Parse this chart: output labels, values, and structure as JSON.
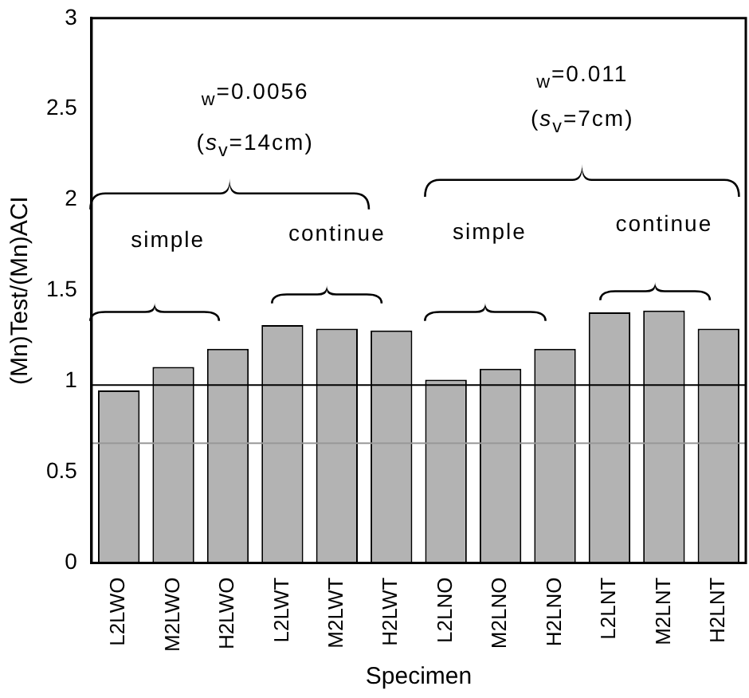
{
  "chart_data": {
    "type": "bar",
    "xlabel": "Specimen",
    "ylabel": "(Mn)Test/(Mn)ACI",
    "categories": [
      "L2LWO",
      "M2LWO",
      "H2LWO",
      "L2LWT",
      "M2LWT",
      "H2LWT",
      "L2LNO",
      "M2LNO",
      "H2LNO",
      "L2LNT",
      "M2LNT",
      "H2LNT"
    ],
    "values": [
      0.95,
      1.08,
      1.18,
      1.31,
      1.29,
      1.28,
      1.01,
      1.07,
      1.18,
      1.38,
      1.39,
      1.29
    ],
    "color": "#b3b3b3",
    "ylim": [
      0,
      3
    ],
    "yticks": [
      0,
      0.5,
      1,
      1.5,
      2,
      2.5,
      3
    ],
    "grid": false,
    "legend": false,
    "ref_lines": [
      {
        "axis": "y",
        "value": 0.98,
        "color": "#000000"
      },
      {
        "axis": "y",
        "value": 0.66,
        "color": "#999999"
      }
    ],
    "annotations": [
      "$_{w}$=0.0056",
      "(s$_{v}$=14cm)",
      "$_{w}$=0.011",
      "(s$_{v}$=7cm)",
      "simple",
      "continue",
      "simple",
      "continue"
    ]
  }
}
